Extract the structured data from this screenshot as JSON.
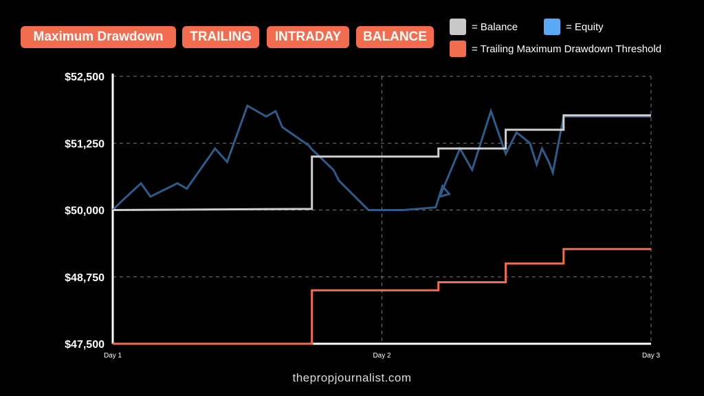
{
  "tags": [
    "Maximum Drawdown",
    "TRAILING",
    "INTRADAY",
    "BALANCE"
  ],
  "legend": [
    {
      "label": "= Balance",
      "color": "#c8c8c8"
    },
    {
      "label": "= Equity",
      "color": "#5aa9f5"
    },
    {
      "label": "= Trailing Maximum Drawdown Threshold",
      "color": "#f26d4f"
    }
  ],
  "footer": "thepropjournalist.com",
  "chart_data": {
    "type": "line",
    "ylim": [
      47500,
      52500
    ],
    "xlim": [
      0,
      2
    ],
    "yticks": [
      {
        "value": 52500,
        "label": "$52,500"
      },
      {
        "value": 51250,
        "label": "$51,250"
      },
      {
        "value": 50000,
        "label": "$50,000"
      },
      {
        "value": 48750,
        "label": "$48,750"
      },
      {
        "value": 47500,
        "label": "$47,500"
      }
    ],
    "xticks": [
      {
        "value": 0,
        "label": "Day 1"
      },
      {
        "value": 1,
        "label": "Day 2"
      },
      {
        "value": 2,
        "label": "Day 3"
      }
    ],
    "grid": true,
    "series": [
      {
        "name": "Equity",
        "color": "#2f5b8a",
        "x": [
          0,
          0.03,
          0.105,
          0.14,
          0.24,
          0.275,
          0.38,
          0.425,
          0.5,
          0.57,
          0.605,
          0.63,
          0.73,
          0.737,
          0.82,
          0.84,
          0.95,
          0.98,
          1.08,
          1.2,
          1.225,
          1.25,
          1.215,
          1.29,
          1.335,
          1.405,
          1.46,
          1.5,
          1.526,
          1.55,
          1.575,
          1.595,
          1.62,
          1.635,
          1.675,
          1.7,
          2.0
        ],
        "y": [
          50000,
          50150,
          50500,
          50250,
          50500,
          50400,
          51150,
          50900,
          51950,
          51750,
          51850,
          51550,
          51200,
          51150,
          50750,
          50550,
          50000,
          50000,
          50000,
          50050,
          50450,
          50300,
          50250,
          51150,
          50750,
          51850,
          51050,
          51450,
          51350,
          51250,
          50850,
          51150,
          50900,
          50700,
          51750,
          51750,
          51750
        ]
      },
      {
        "name": "Balance",
        "color": "#cfcfcf",
        "x": [
          0,
          0.74,
          0.74,
          1.21,
          1.21,
          1.46,
          1.46,
          1.675,
          1.675,
          2.0
        ],
        "y": [
          50000,
          50020,
          51000,
          51000,
          51150,
          51150,
          51500,
          51500,
          51770,
          51770
        ]
      },
      {
        "name": "Trailing Maximum Drawdown Threshold",
        "color": "#f26d4f",
        "x": [
          0,
          0.74,
          0.74,
          1.21,
          1.21,
          1.46,
          1.46,
          1.675,
          1.675,
          2.0
        ],
        "y": [
          47500,
          47500,
          48500,
          48500,
          48650,
          48650,
          49000,
          49000,
          49270,
          49270
        ]
      }
    ]
  }
}
